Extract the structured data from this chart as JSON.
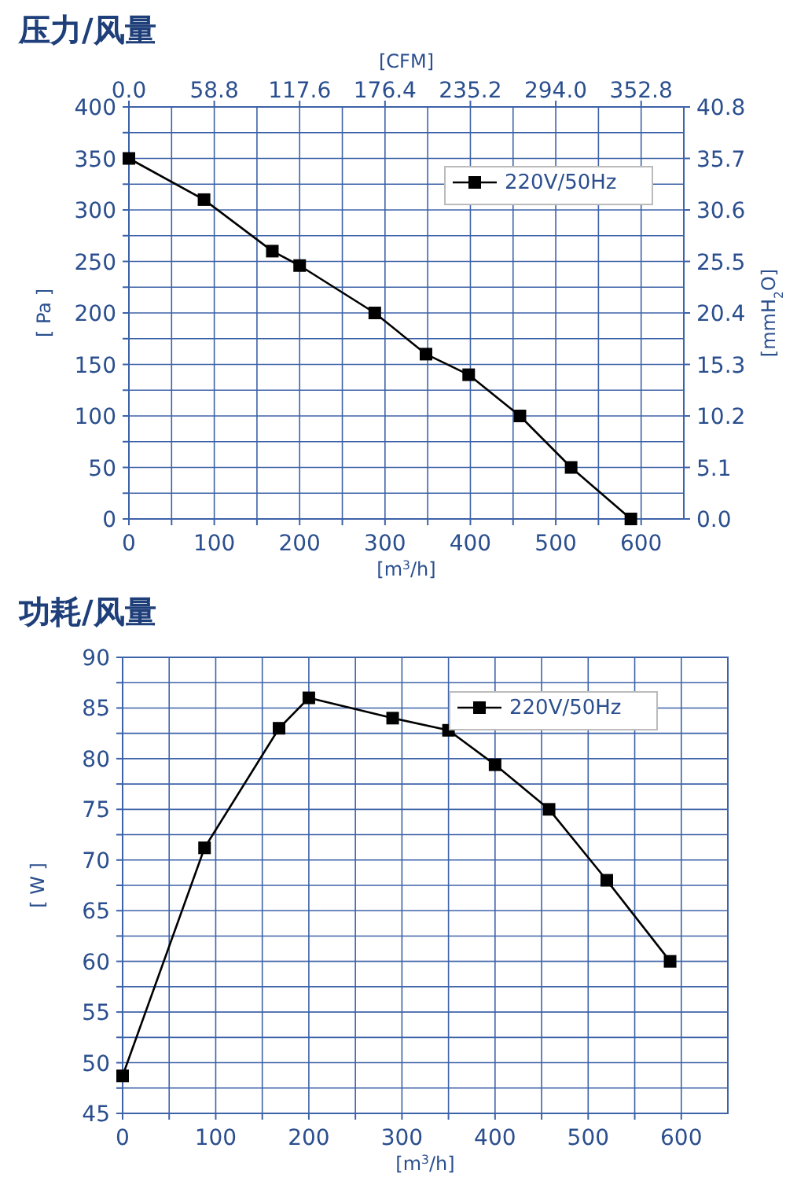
{
  "chart_data": [
    {
      "type": "line",
      "title": "压力/风量",
      "xlabel": "[m$^{3}$/h]",
      "ylabel": "[ Pa ]",
      "y2label": "[mmH$_{2}$O]",
      "x2label": "[CFM]",
      "series": [
        {
          "name": "220V/50Hz",
          "color": "#000000",
          "x": [
            0,
            88,
            168,
            200,
            288,
            348,
            398,
            458,
            518,
            588
          ],
          "values": [
            350,
            310,
            260,
            246,
            200,
            160,
            140,
            100,
            50,
            0
          ]
        }
      ],
      "xlim": [
        0,
        650
      ],
      "xticks": [
        0,
        {
          "value": 50,
          "label": null
        },
        100,
        {
          "value": 150,
          "label": null
        },
        200,
        {
          "value": 250,
          "label": null
        },
        300,
        {
          "value": 350,
          "label": null
        },
        400,
        {
          "value": 450,
          "label": null
        },
        500,
        {
          "value": 550,
          "label": null
        },
        600
      ],
      "ylim": [
        0,
        400
      ],
      "yticks": [
        0,
        {
          "value": 25,
          "label": null
        },
        50,
        {
          "value": 75,
          "label": null
        },
        100,
        {
          "value": 125,
          "label": null
        },
        150,
        {
          "value": 175,
          "label": null
        },
        200,
        {
          "value": 225,
          "label": null
        },
        250,
        {
          "value": 275,
          "label": null
        },
        300,
        {
          "value": 325,
          "label": null
        },
        350,
        {
          "value": 375,
          "label": null
        },
        400
      ],
      "x2lim": [
        0,
        382.2
      ],
      "x2ticks": [
        {
          "value": 0,
          "label": "0.0"
        },
        58.8,
        117.6,
        176.4,
        235.2,
        {
          "value": 294,
          "label": "294.0"
        },
        352.8
      ],
      "y2lim": [
        0,
        40.8
      ],
      "y2ticks": [
        {
          "value": 0,
          "label": "0.0"
        },
        5.1,
        10.2,
        15.3,
        20.4,
        25.5,
        30.6,
        35.7,
        40.8
      ],
      "grid": true,
      "legend": "top right",
      "marker": "square",
      "line_style": "solid"
    },
    {
      "type": "line",
      "title": "功耗/风量",
      "xlabel": "[m$^{3}$/h]",
      "ylabel": "[ W ]",
      "series": [
        {
          "name": "220V/50Hz",
          "color": "#000000",
          "x": [
            0,
            88,
            168,
            200,
            290,
            350,
            400,
            458,
            520,
            588
          ],
          "values": [
            48.7,
            71.2,
            83,
            86,
            84,
            82.8,
            79.4,
            75,
            68,
            60
          ]
        }
      ],
      "xlim": [
        0,
        650
      ],
      "xticks": [
        0,
        {
          "value": 50,
          "label": null
        },
        100,
        {
          "value": 150,
          "label": null
        },
        200,
        {
          "value": 250,
          "label": null
        },
        300,
        {
          "value": 350,
          "label": null
        },
        400,
        {
          "value": 450,
          "label": null
        },
        500,
        {
          "value": 550,
          "label": null
        },
        600
      ],
      "ylim": [
        45,
        90
      ],
      "yticks": [
        45,
        {
          "value": 47.5,
          "label": null
        },
        50,
        {
          "value": 52.5,
          "label": null
        },
        55,
        {
          "value": 57.5,
          "label": null
        },
        60,
        {
          "value": 62.5,
          "label": null
        },
        65,
        {
          "value": 67.5,
          "label": null
        },
        70,
        {
          "value": 72.5,
          "label": null
        },
        75,
        {
          "value": 77.5,
          "label": null
        },
        80,
        {
          "value": 82.5,
          "label": null
        },
        85,
        {
          "value": 87.5,
          "label": null
        },
        90
      ],
      "grid": true,
      "legend": "top right",
      "marker": "square",
      "line_style": "solid"
    }
  ]
}
